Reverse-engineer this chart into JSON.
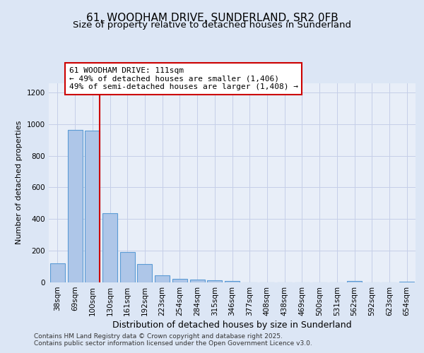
{
  "title": "61, WOODHAM DRIVE, SUNDERLAND, SR2 0FB",
  "subtitle": "Size of property relative to detached houses in Sunderland",
  "xlabel": "Distribution of detached houses by size in Sunderland",
  "ylabel": "Number of detached properties",
  "bar_labels": [
    "38sqm",
    "69sqm",
    "100sqm",
    "130sqm",
    "161sqm",
    "192sqm",
    "223sqm",
    "254sqm",
    "284sqm",
    "315sqm",
    "346sqm",
    "377sqm",
    "408sqm",
    "438sqm",
    "469sqm",
    "500sqm",
    "531sqm",
    "562sqm",
    "592sqm",
    "623sqm",
    "654sqm"
  ],
  "bar_values": [
    120,
    965,
    960,
    435,
    190,
    115,
    45,
    22,
    20,
    15,
    10,
    0,
    0,
    0,
    0,
    0,
    0,
    10,
    0,
    0,
    5
  ],
  "bar_color": "#aec6e8",
  "bar_edge_color": "#5b9bd5",
  "vline_x_index": 2,
  "vline_color": "#cc0000",
  "annotation_title": "61 WOODHAM DRIVE: 111sqm",
  "annotation_line1": "← 49% of detached houses are smaller (1,406)",
  "annotation_line2": "49% of semi-detached houses are larger (1,408) →",
  "annotation_box_facecolor": "#ffffff",
  "annotation_box_edgecolor": "#cc0000",
  "ylim": [
    0,
    1260
  ],
  "yticks": [
    0,
    200,
    400,
    600,
    800,
    1000,
    1200
  ],
  "bg_color": "#dce6f5",
  "plot_bg_color": "#e8eef8",
  "grid_color": "#c5cfe8",
  "footer1": "Contains HM Land Registry data © Crown copyright and database right 2025.",
  "footer2": "Contains public sector information licensed under the Open Government Licence v3.0.",
  "title_fontsize": 11,
  "subtitle_fontsize": 9.5,
  "ylabel_fontsize": 8,
  "xlabel_fontsize": 9,
  "tick_fontsize": 7.5,
  "footer_fontsize": 6.5,
  "annotation_fontsize": 8
}
